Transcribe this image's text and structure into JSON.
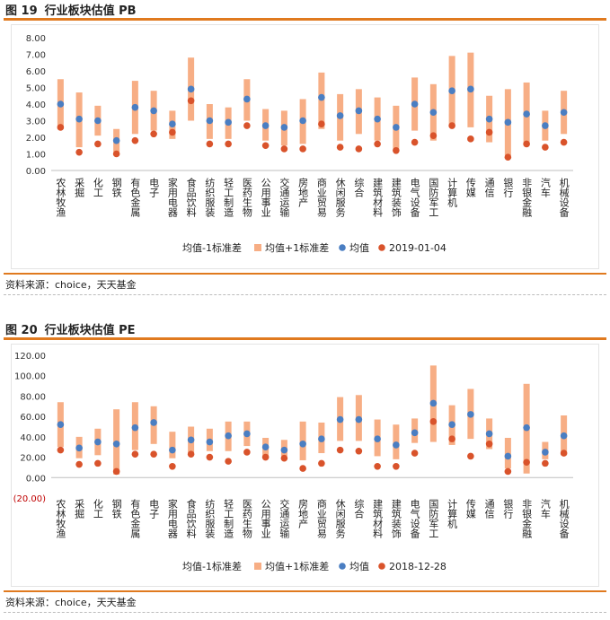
{
  "figures": [
    {
      "fig_label": "图 19",
      "title": "行业板块估值 PB",
      "source": "资料来源：choice，天天基金",
      "legend": {
        "band": "均值-1标准差",
        "band2": "均值+1标准差",
        "mean": "均值",
        "current": "2019-01-04"
      },
      "colors": {
        "band": "#F7AE85",
        "mean": "#4A7EC2",
        "current": "#D9532B",
        "rule": "#E07A1F"
      }
    },
    {
      "fig_label": "图 20",
      "title": "行业板块估值 PE",
      "source": "资料来源：choice，天天基金",
      "legend": {
        "band": "均值-1标准差",
        "band2": "均值+1标准差",
        "mean": "均值",
        "current": "2018-12-28"
      },
      "colors": {
        "band": "#F7AE85",
        "mean": "#4A7EC2",
        "current": "#D9532B",
        "rule": "#E07A1F"
      }
    }
  ],
  "chart_data": [
    {
      "type": "bar",
      "title": "行业板块估值 PB",
      "categories": [
        "农林牧渔",
        "采掘",
        "化工",
        "钢铁",
        "有色金属",
        "电子",
        "家用电器",
        "食品饮料",
        "纺织服装",
        "轻工制造",
        "医药生物",
        "公用事业",
        "交通运输",
        "房地产",
        "商业贸易",
        "休闲服务",
        "综合",
        "建筑材料",
        "建筑装饰",
        "电气设备",
        "国防军工",
        "计算机",
        "传媒",
        "通信",
        "银行",
        "非银金融",
        "汽车",
        "机械设备"
      ],
      "ylim": [
        0,
        8
      ],
      "yticks": [
        "0.00",
        "1.00",
        "2.00",
        "3.00",
        "4.00",
        "5.00",
        "6.00",
        "7.00",
        "8.00"
      ],
      "series": [
        {
          "name": "均值-1标准差",
          "values": [
            2.5,
            1.4,
            2.1,
            1.1,
            2.2,
            2.4,
            1.9,
            3.0,
            1.9,
            1.9,
            3.0,
            1.8,
            1.5,
            1.6,
            2.5,
            1.8,
            2.2,
            1.8,
            1.3,
            2.4,
            1.8,
            2.7,
            2.6,
            1.7,
            0.9,
            1.5,
            1.8,
            2.2
          ]
        },
        {
          "name": "均值+1标准差",
          "values": [
            5.5,
            4.7,
            3.9,
            2.5,
            5.4,
            4.8,
            3.6,
            6.8,
            4.0,
            3.8,
            5.5,
            3.7,
            3.6,
            4.3,
            5.9,
            4.6,
            4.9,
            4.4,
            3.9,
            5.6,
            5.2,
            6.9,
            7.1,
            4.5,
            4.9,
            5.3,
            3.6,
            4.8
          ]
        },
        {
          "name": "均值",
          "values": [
            4.0,
            3.1,
            3.0,
            1.8,
            3.8,
            3.6,
            2.8,
            4.9,
            3.0,
            2.9,
            4.3,
            2.7,
            2.6,
            3.0,
            4.4,
            3.3,
            3.6,
            3.1,
            2.6,
            4.0,
            3.5,
            4.8,
            4.9,
            3.1,
            2.9,
            3.4,
            2.7,
            3.5
          ]
        },
        {
          "name": "2019-01-04",
          "values": [
            2.6,
            1.1,
            1.6,
            1.0,
            1.8,
            2.2,
            2.3,
            4.2,
            1.6,
            1.6,
            2.7,
            1.5,
            1.3,
            1.3,
            2.8,
            1.4,
            1.3,
            1.6,
            1.2,
            1.7,
            2.1,
            2.7,
            1.9,
            2.3,
            0.8,
            1.6,
            1.4,
            1.7
          ]
        }
      ]
    },
    {
      "type": "bar",
      "title": "行业板块估值 PE",
      "categories": [
        "农林牧渔",
        "采掘",
        "化工",
        "钢铁",
        "有色金属",
        "电子",
        "家用电器",
        "食品饮料",
        "纺织服装",
        "轻工制造",
        "医药生物",
        "公用事业",
        "交通运输",
        "房地产",
        "商业贸易",
        "休闲服务",
        "综合",
        "建筑材料",
        "建筑装饰",
        "电气设备",
        "国防军工",
        "计算机",
        "传媒",
        "通信",
        "银行",
        "非银金融",
        "汽车",
        "机械设备"
      ],
      "ylim": [
        -20,
        120
      ],
      "yticks": [
        "(20.00)",
        "0.00",
        "20.00",
        "40.00",
        "60.00",
        "80.00",
        "100.00",
        "120.00"
      ],
      "series": [
        {
          "name": "均值-1标准差",
          "values": [
            30,
            19,
            22,
            3,
            27,
            33,
            19,
            24,
            26,
            26,
            31,
            21,
            21,
            17,
            24,
            36,
            36,
            21,
            18,
            34,
            35,
            32,
            38,
            28,
            9,
            4,
            18,
            22
          ]
        },
        {
          "name": "均值+1标准差",
          "values": [
            74,
            40,
            48,
            67,
            74,
            70,
            45,
            50,
            48,
            55,
            55,
            39,
            37,
            55,
            54,
            79,
            81,
            57,
            52,
            58,
            110,
            71,
            87,
            58,
            39,
            92,
            35,
            61
          ]
        },
        {
          "name": "均值",
          "values": [
            52,
            29,
            35,
            33,
            49,
            54,
            27,
            37,
            35,
            41,
            43,
            30,
            27,
            33,
            38,
            57,
            57,
            38,
            32,
            44,
            73,
            52,
            62,
            43,
            21,
            49,
            25,
            41
          ]
        },
        {
          "name": "2018-12-28",
          "values": [
            27,
            13,
            14,
            6,
            23,
            23,
            11,
            23,
            20,
            16,
            25,
            20,
            19,
            9,
            14,
            27,
            26,
            11,
            11,
            24,
            55,
            38,
            21,
            33,
            6,
            15,
            14,
            24
          ]
        }
      ]
    }
  ]
}
